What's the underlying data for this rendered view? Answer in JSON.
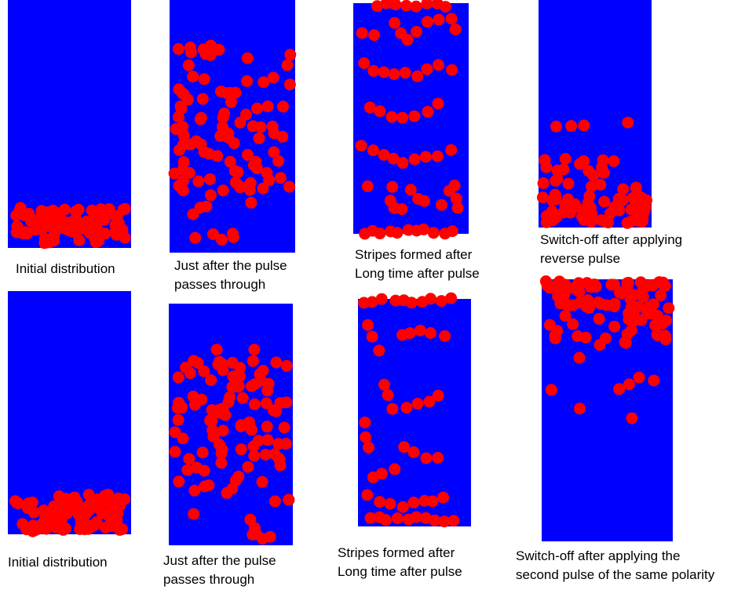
{
  "colors": {
    "container": "#0000ff",
    "particle": "#ff0000",
    "text": "#000000"
  },
  "panels": [
    {
      "id": "row1-initial",
      "caption_lines": [
        "Initial distribution"
      ],
      "distribution": "bottom-packed"
    },
    {
      "id": "row1-after-pulse",
      "caption_lines": [
        "Just after the pulse",
        "passes through"
      ],
      "distribution": "dispersed"
    },
    {
      "id": "row1-stripes",
      "caption_lines": [
        "Stripes formed after",
        "Long time after pulse"
      ],
      "distribution": "stripes"
    },
    {
      "id": "row1-reverse",
      "caption_lines": [
        "Switch-off after applying",
        "reverse pulse"
      ],
      "distribution": "bottom-gradient"
    },
    {
      "id": "row2-initial",
      "caption_lines": [
        "Initial distribution"
      ],
      "distribution": "bottom-packed"
    },
    {
      "id": "row2-after-pulse",
      "caption_lines": [
        "Just after the pulse",
        "passes through"
      ],
      "distribution": "dispersed"
    },
    {
      "id": "row2-stripes",
      "caption_lines": [
        "Stripes formed after",
        "Long time after pulse"
      ],
      "distribution": "stripes"
    },
    {
      "id": "row2-same-polarity",
      "caption_lines": [
        "Switch-off after applying the",
        "second pulse of the same polarity"
      ],
      "distribution": "top-packed"
    }
  ]
}
